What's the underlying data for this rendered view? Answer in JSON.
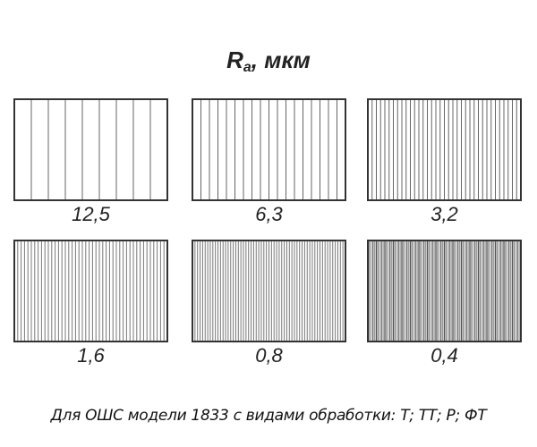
{
  "title": {
    "symbol": "R",
    "subscript": "a",
    "unit": ", мкм"
  },
  "panels": [
    {
      "label": "12,5"
    },
    {
      "label": "6,3"
    },
    {
      "label": "3,2"
    },
    {
      "label": "1,6"
    },
    {
      "label": "0,8"
    },
    {
      "label": "0,4"
    }
  ],
  "caption": "Для ОШС модели 1833 с видами обработки: Т; ТТ; Р; ФТ",
  "colors": {
    "frame": "#333333",
    "lines": "#555555"
  }
}
